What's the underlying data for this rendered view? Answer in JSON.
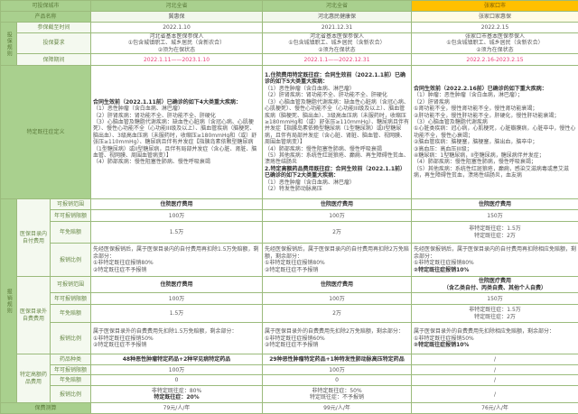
{
  "header": {
    "label": "可投保城市",
    "cities": [
      "河北全省",
      "河北全省",
      "张家口市"
    ]
  },
  "product": {
    "label": "产品名称",
    "names": [
      "冀惠保",
      "河北惠民健康保",
      "张家口家惠保"
    ]
  },
  "rules": {
    "group": "投保规则",
    "deadline_label": "参保截至时间",
    "deadlines": [
      "2022.1.10",
      "2021.12.31",
      "2022.2.15"
    ],
    "req_label": "投保要求",
    "reqs": [
      [
        "河北省基本医保参保人",
        "①包含城镇职工、城乡居民（含新农合）",
        "②须为在保状态"
      ],
      [
        "河北省基本医保参保人",
        "①包含城镇职工、城乡居民（含新农合）",
        "②须为在保状态"
      ],
      [
        "张家口市基本医保参保人",
        "①包含城镇职工、城乡居民（含新农合）",
        "②须为在保状态"
      ]
    ],
    "period_label": "保障期间",
    "periods": [
      "2022.1.11——2023.1.10",
      "2022.1.1——2022.12.31",
      "2022.2.16-2023.2.15"
    ]
  },
  "preexisting": {
    "label": "特定既往症定义",
    "a": {
      "title": "合同生效前（2022.1.11前）已确诊的如下4大类重大疾病：",
      "items": [
        "（1）恶性肿瘤（含白血病、淋巴瘤）",
        "（2）肝肾疾病：肾功能不全、肝功能不全、肝硬化",
        "（3）心脑血管及糖脂代谢疾病：缺血性心脏病（含冠心病、心肌梗死）、慢性心功能不全（心功能III级及以上）、脑血管疾病（脑梗死、脑出血）、3级高血压病（未服药时，收缩压≥180mmHg和（或）舒张压≥110mmHg）、糖尿病且伴有并发症【指胰岛素依赖型糖尿病（1型糖尿病）或II型糖尿病，且伴有局部并发症（含心脏、肾脏、脑血管、视网膜、周围血管病变）】",
        "（4）肺部疾病：慢性阻塞性肺病、慢性呼吸衰竭"
      ]
    },
    "b": {
      "title1": "1.住院费用特定既往症：合同生效前（2022.1.1前）已确诊的如下5大类重大疾病：",
      "items1": [
        "（1）恶性肿瘤（含白血病、淋巴瘤）",
        "（2）肝肾疾病：肾功能不全、肝功能不全、肝硬化",
        "（3）心脑血管及糖脂代谢疾病：缺血性心脏病（含冠心病、心肌梗死）、慢性心功能不全（心功能III级及以上）、脑血管疾病（脑梗死、脑出血）、3级高血压病（未服药时，收缩压≥180mmHg和（或）舒张压≥110mmHg）、糖尿病且伴有并发症【指胰岛素依赖型糖尿病（1型糖尿病）或II型糖尿病，且伴有局部并发症（含心脏、肾脏、脑血管、视网膜、周围血管病变）】",
        "（4）肺部疾病：慢性阻塞性肺病、慢性呼吸衰竭",
        "（5）其他疾病：系统性红斑狼疮、癫痫、再生障碍性贫血、溃疡性结肠炎"
      ],
      "title2": "2.特定高额药品费用既往症：合同生效前（2022.1.1前）已确诊的如下2大类重大疾病：",
      "items2": [
        "（1）恶性肿瘤（含白血病、淋巴瘤）",
        "（2）特发性肺动脉高压"
      ]
    },
    "c": {
      "title": "合同生效前（2022.2.16前）已确诊的如下重大疾病：",
      "items": [
        "（1）肿瘤：恶性肿瘤（含白血病，淋巴瘤）；",
        "（2）肝肾疾病",
        "①肾功能不全，慢性肾功能不全，慢性肾功能衰竭；",
        "②肝功能不全，慢性肝功能不全，肝硬化，慢性肝功能衰竭；",
        "（3）心脑血管及糖脂代谢疾病",
        "①心脏类疾病：冠心病，心肌梗死，心脏瓣膜病，心脏卒中，慢性心功能不全，慢性心衰竭；",
        "②脑血管疾病：脑梗塞，脑梗塞，脑出血，脑卒中；",
        "③高血压：高血压III级；",
        "④糖尿病：1型糖尿病，II型糖尿病，糖尿病伴并发症；",
        "（4）肺部疾病：慢性阻塞性肺病，慢性呼吸衰竭；",
        "（5）其他疾病：系统性红斑狼疮，癫痫，感染艾滋病毒或患艾滋病，再生障碍性贫血，溃疡性结肠炎，血友病"
      ]
    }
  },
  "reimb": {
    "group": "报销规则",
    "in_list": {
      "label": "医保目录内自付费用",
      "scope_label": "可报销范围",
      "limit_label": "年可报销限额",
      "deduct_label": "年免赔额",
      "ratio_label": "报销比例",
      "scope": [
        "住院医疗费用",
        "住院医疗费用",
        "住院医疗费用"
      ],
      "limit": [
        "100万",
        "100万",
        "150万"
      ],
      "deduct": [
        [
          "1.5万"
        ],
        [
          "2万"
        ],
        [
          "非特定既往症：1.5万",
          "特定既往症：2万"
        ]
      ],
      "ratio": [
        [
          "先经医保报销后，属于医保目录内的自付费用再扣除1.5万免赔额，剩余部分：",
          "①非特定既往症报销80%",
          "②特定既往症不予报销"
        ],
        [
          "先经医保报销后，属于医保目录内的自付费用再扣除2万免赔额，剩余部分：",
          "①非特定既往症报销80%",
          "②特定既往症不予报销"
        ],
        [
          "先经医保报销后，属于医保目录内的自付费用再扣除相应免赔额，剩余部分：",
          "①非特定既往症报销80%",
          "②特定既往症报销10%"
        ]
      ]
    },
    "out_list": {
      "label": "医保目录外自费费用",
      "scope_label": "可报销范围",
      "limit_label": "年可报销限额",
      "deduct_label": "年免赔额",
      "ratio_label": "报销比例",
      "scope": [
        [
          "住院医疗费用"
        ],
        [
          "住院医疗费用"
        ],
        [
          "住院医疗费用",
          "（含乙类自付、丙类自费、其他个人自费）"
        ]
      ],
      "limit": [
        "100万",
        "100万",
        "150万"
      ],
      "deduct": [
        [
          "1.5万"
        ],
        [
          "2万"
        ],
        [
          "非特定既往症：1.5万",
          "特定既往症：2万"
        ]
      ],
      "ratio": [
        [
          "属于医保目录外的自费费用先扣除1.5万免赔额，剩余部分：",
          "①非特定既往症报销50%",
          "②特定既往症不予报销"
        ],
        [
          "属于医保目录外的自费费用先扣除2万免赔额，剩余部分：",
          "①非特定既往症报销60%",
          "②特定既往症不予报销"
        ],
        [
          "属于医保目录外的自费费用先扣除相应免赔额，剩余部分：",
          "①非特定既往症报销50%",
          "②特定既往症报销10%"
        ]
      ]
    },
    "drugs": {
      "label": "特定高额药品费用",
      "type_label": "药品种类",
      "limit_label": "年可报销限额",
      "deduct_label": "年免赔额",
      "ratio_label": "报销比例",
      "types": [
        "48种恶性肿瘤特定药品+2种罕见病特定药品",
        "29种恶性肿瘤特定药品+1种特发性肺动脉高压特定药品",
        "/"
      ],
      "limit": [
        "100万",
        "100万",
        "/"
      ],
      "deduct": [
        "0",
        "0",
        "/"
      ],
      "ratio": [
        [
          "非特定既往症：80%",
          "特定既往症：20%"
        ],
        [
          "非特定既往症：50%",
          "特定既往症：不予报销"
        ],
        [
          "/"
        ]
      ]
    }
  },
  "premium": {
    "label": "保费测算",
    "values": [
      "79元/人/年",
      "99元/人/年",
      "76元/人/年"
    ]
  }
}
